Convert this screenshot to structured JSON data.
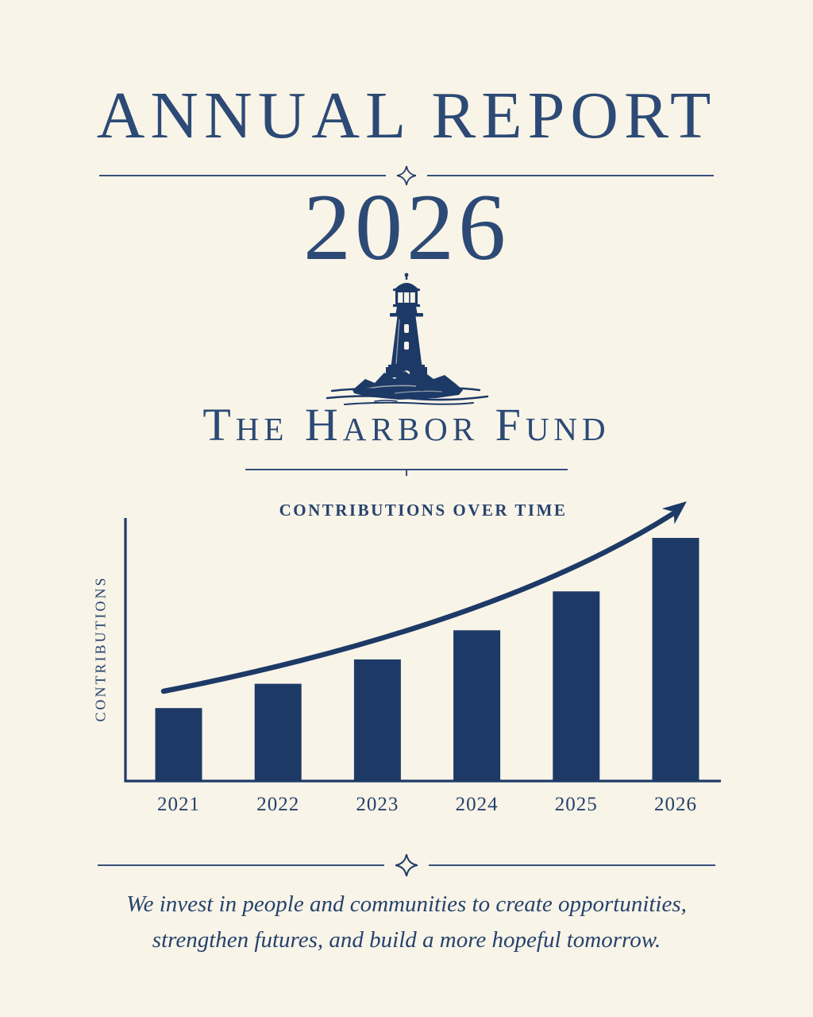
{
  "header": {
    "title": "ANNUAL REPORT",
    "year": "2026",
    "org_name": "The Harbor Fund"
  },
  "logo": {
    "icon": "lighthouse-icon",
    "description": "engraved lighthouse on rocks with water"
  },
  "chart_data": {
    "type": "bar",
    "title": "CONTRIBUTIONS OVER TIME",
    "xlabel": "",
    "ylabel": "CONTRIBUTIONS",
    "categories": [
      "2021",
      "2022",
      "2023",
      "2024",
      "2025",
      "2026"
    ],
    "values": [
      30,
      40,
      50,
      62,
      78,
      100
    ],
    "values_note": "relative bar heights; no numeric value axis labels shown",
    "ylim": [
      0,
      100
    ],
    "grid": false,
    "legend": "none",
    "annotations": [
      "upward curved trend arrow above bars"
    ],
    "bar_color": "#1d3a67"
  },
  "footer": {
    "mission_line1": "We invest in people and communities to create opportunities,",
    "mission_line2": "strengthen futures, and build a more hopeful tomorrow."
  },
  "colors": {
    "background": "#f9f4e8",
    "ink": "#1d3a67",
    "heading": "#2c4a75",
    "rule": "#35507c"
  }
}
